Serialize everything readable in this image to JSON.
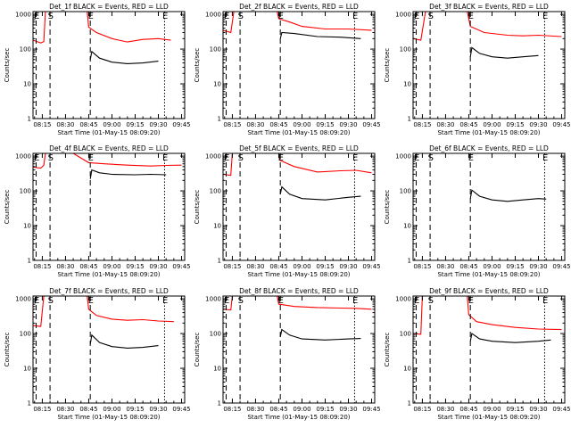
{
  "chart_data": [
    {
      "type": "line",
      "title": "Det_1f BLACK = Events, RED = LLD",
      "xlabel": "Start Time (01-May-15 08:09:20)",
      "ylabel": "Counts/sec",
      "x_ticks": [
        "08:15",
        "08:30",
        "08:45",
        "09:00",
        "09:15",
        "09:30",
        "09:45"
      ],
      "y_ticks": [
        "1",
        "10",
        "100",
        "1000"
      ],
      "ylim": [
        1,
        1200
      ],
      "scale": "log",
      "markers": [
        "E",
        "S",
        "E",
        "E"
      ],
      "series": [
        {
          "color": "#ff0000",
          "points": [
            [
              "08:09",
              180
            ],
            [
              "08:14",
              150
            ],
            [
              "08:16",
              165
            ],
            [
              "08:17",
              1200
            ],
            [
              "08:44",
              1200
            ],
            [
              "08:45",
              430
            ],
            [
              "08:50",
              300
            ],
            [
              "09:00",
              200
            ],
            [
              "09:10",
              160
            ],
            [
              "09:20",
              190
            ],
            [
              "09:30",
              200
            ],
            [
              "09:38",
              180
            ]
          ]
        },
        {
          "color": "#000000",
          "points": [
            [
              "08:46",
              50
            ],
            [
              "08:47",
              85
            ],
            [
              "08:52",
              55
            ],
            [
              "09:00",
              42
            ],
            [
              "09:10",
              38
            ],
            [
              "09:20",
              40
            ],
            [
              "09:30",
              45
            ]
          ]
        }
      ]
    },
    {
      "type": "line",
      "title": "Det_2f BLACK = Events, RED = LLD",
      "xlabel": "Start Time (01-May-15 08:09:20)",
      "ylabel": "Counts/sec",
      "x_ticks": [
        "08:15",
        "08:30",
        "08:45",
        "09:00",
        "09:15",
        "09:30",
        "09:45"
      ],
      "y_ticks": [
        "1",
        "10",
        "100",
        "1000"
      ],
      "ylim": [
        1,
        1200
      ],
      "scale": "log",
      "markers": [
        "E",
        "S",
        "E",
        "E"
      ],
      "series": [
        {
          "color": "#ff0000",
          "points": [
            [
              "08:09",
              350
            ],
            [
              "08:14",
              300
            ],
            [
              "08:16",
              1200
            ],
            [
              "08:44",
              1200
            ],
            [
              "08:45",
              750
            ],
            [
              "08:52",
              600
            ],
            [
              "09:00",
              450
            ],
            [
              "09:15",
              380
            ],
            [
              "09:30",
              380
            ],
            [
              "09:45",
              350
            ]
          ]
        },
        {
          "color": "#000000",
          "points": [
            [
              "08:46",
              200
            ],
            [
              "08:47",
              300
            ],
            [
              "08:55",
              280
            ],
            [
              "09:10",
              230
            ],
            [
              "09:25",
              220
            ],
            [
              "09:38",
              200
            ]
          ]
        }
      ]
    },
    {
      "type": "line",
      "title": "Det_3f BLACK = Events, RED = LLD",
      "xlabel": "Start Time (01-May-15 08:09:20)",
      "ylabel": "Counts/sec",
      "x_ticks": [
        "08:15",
        "08:30",
        "08:45",
        "09:00",
        "09:15",
        "09:30",
        "09:45"
      ],
      "y_ticks": [
        "1",
        "10",
        "100",
        "1000"
      ],
      "ylim": [
        1,
        1200
      ],
      "scale": "log",
      "markers": [
        "E",
        "S",
        "E",
        "E"
      ],
      "series": [
        {
          "color": "#ff0000",
          "points": [
            [
              "08:09",
              200
            ],
            [
              "08:14",
              180
            ],
            [
              "08:17",
              1200
            ],
            [
              "08:44",
              1200
            ],
            [
              "08:46",
              450
            ],
            [
              "08:55",
              300
            ],
            [
              "09:10",
              250
            ],
            [
              "09:20",
              240
            ],
            [
              "09:30",
              250
            ],
            [
              "09:45",
              230
            ]
          ]
        },
        {
          "color": "#000000",
          "points": [
            [
              "08:46",
              60
            ],
            [
              "08:47",
              110
            ],
            [
              "08:52",
              75
            ],
            [
              "09:00",
              60
            ],
            [
              "09:10",
              55
            ],
            [
              "09:20",
              60
            ],
            [
              "09:30",
              65
            ]
          ]
        }
      ]
    },
    {
      "type": "line",
      "title": "Det_4f BLACK = Events, RED = LLD",
      "xlabel": "Start Time (01-May-15 08:09:20)",
      "ylabel": "Counts/sec",
      "x_ticks": [
        "08:15",
        "08:30",
        "08:45",
        "09:00",
        "09:15",
        "09:30",
        "09:45"
      ],
      "y_ticks": [
        "1",
        "10",
        "100",
        "1000"
      ],
      "ylim": [
        1,
        1200
      ],
      "scale": "log",
      "markers": [
        "E",
        "S",
        "E",
        "E"
      ],
      "series": [
        {
          "color": "#ff0000",
          "points": [
            [
              "08:09",
              480
            ],
            [
              "08:14",
              450
            ],
            [
              "08:16",
              550
            ],
            [
              "08:17",
              1200
            ],
            [
              "08:35",
              1200
            ],
            [
              "08:38",
              1000
            ],
            [
              "08:45",
              650
            ],
            [
              "08:55",
              600
            ],
            [
              "09:10",
              550
            ],
            [
              "09:25",
              520
            ],
            [
              "09:35",
              540
            ],
            [
              "09:45",
              550
            ]
          ]
        },
        {
          "color": "#000000",
          "points": [
            [
              "08:46",
              220
            ],
            [
              "08:47",
              400
            ],
            [
              "08:52",
              330
            ],
            [
              "09:00",
              300
            ],
            [
              "09:15",
              290
            ],
            [
              "09:25",
              300
            ],
            [
              "09:35",
              290
            ]
          ]
        }
      ]
    },
    {
      "type": "line",
      "title": "Det_5f BLACK = Events, RED = LLD",
      "xlabel": "Start Time (01-May-15 08:09:20)",
      "ylabel": "Counts/sec",
      "x_ticks": [
        "08:15",
        "08:30",
        "08:45",
        "09:00",
        "09:15",
        "09:30",
        "09:45"
      ],
      "y_ticks": [
        "1",
        "10",
        "100",
        "1000"
      ],
      "ylim": [
        1,
        1200
      ],
      "scale": "log",
      "markers": [
        "E",
        "S",
        "E",
        "E"
      ],
      "series": [
        {
          "color": "#ff0000",
          "points": [
            [
              "08:09",
              300
            ],
            [
              "08:14",
              280
            ],
            [
              "08:15",
              1200
            ],
            [
              "08:45",
              1200
            ],
            [
              "08:46",
              750
            ],
            [
              "08:55",
              500
            ],
            [
              "09:10",
              350
            ],
            [
              "09:25",
              380
            ],
            [
              "09:35",
              390
            ],
            [
              "09:45",
              330
            ]
          ]
        },
        {
          "color": "#000000",
          "points": [
            [
              "08:46",
              80
            ],
            [
              "08:47",
              130
            ],
            [
              "08:52",
              80
            ],
            [
              "09:00",
              60
            ],
            [
              "09:15",
              55
            ],
            [
              "09:30",
              65
            ],
            [
              "09:38",
              70
            ]
          ]
        }
      ]
    },
    {
      "type": "line",
      "title": "Det_6f BLACK = Events, RED = LLD",
      "xlabel": "Start Time (01-May-15 08:09:20)",
      "ylabel": "Counts/sec",
      "x_ticks": [
        "08:15",
        "08:30",
        "08:45",
        "09:00",
        "09:15",
        "09:30",
        "09:45"
      ],
      "y_ticks": [
        "1",
        "10",
        "100",
        "1000"
      ],
      "ylim": [
        1,
        1200
      ],
      "scale": "log",
      "markers": [
        "E",
        "S",
        "E",
        "E"
      ],
      "series": [
        {
          "color": "#000000",
          "points": [
            [
              "08:46",
              60
            ],
            [
              "08:47",
              105
            ],
            [
              "08:52",
              70
            ],
            [
              "09:00",
              55
            ],
            [
              "09:10",
              50
            ],
            [
              "09:20",
              55
            ],
            [
              "09:30",
              60
            ],
            [
              "09:35",
              58
            ]
          ]
        }
      ]
    },
    {
      "type": "line",
      "title": "Det_7f BLACK = Events, RED = LLD",
      "xlabel": "Start Time (01-May-15 08:09:20)",
      "ylabel": "Counts/sec",
      "x_ticks": [
        "08:15",
        "08:30",
        "08:45",
        "09:00",
        "09:15",
        "09:30",
        "09:45"
      ],
      "y_ticks": [
        "1",
        "10",
        "100",
        "1000"
      ],
      "ylim": [
        1,
        1200
      ],
      "scale": "log",
      "markers": [
        "E",
        "S",
        "E",
        "E"
      ],
      "series": [
        {
          "color": "#ff0000",
          "points": [
            [
              "08:09",
              170
            ],
            [
              "08:14",
              160
            ],
            [
              "08:16",
              1200
            ],
            [
              "08:44",
              1200
            ],
            [
              "08:45",
              500
            ],
            [
              "08:50",
              330
            ],
            [
              "09:00",
              260
            ],
            [
              "09:10",
              240
            ],
            [
              "09:20",
              250
            ],
            [
              "09:30",
              230
            ],
            [
              "09:40",
              220
            ]
          ]
        },
        {
          "color": "#000000",
          "points": [
            [
              "08:46",
              50
            ],
            [
              "08:47",
              90
            ],
            [
              "08:52",
              55
            ],
            [
              "09:00",
              42
            ],
            [
              "09:10",
              38
            ],
            [
              "09:20",
              40
            ],
            [
              "09:30",
              45
            ]
          ]
        }
      ]
    },
    {
      "type": "line",
      "title": "Det_8f BLACK = Events, RED = LLD",
      "xlabel": "Start Time (01-May-15 08:09:20)",
      "ylabel": "Counts/sec",
      "x_ticks": [
        "08:15",
        "08:30",
        "08:45",
        "09:00",
        "09:15",
        "09:30",
        "09:45"
      ],
      "y_ticks": [
        "1",
        "10",
        "100",
        "1000"
      ],
      "ylim": [
        1,
        1200
      ],
      "scale": "log",
      "markers": [
        "E",
        "S",
        "E",
        "E"
      ],
      "series": [
        {
          "color": "#ff0000",
          "points": [
            [
              "08:09",
              500
            ],
            [
              "08:14",
              480
            ],
            [
              "08:15",
              1200
            ],
            [
              "08:44",
              1200
            ],
            [
              "08:45",
              700
            ],
            [
              "08:55",
              600
            ],
            [
              "09:10",
              560
            ],
            [
              "09:25",
              540
            ],
            [
              "09:35",
              530
            ],
            [
              "09:45",
              500
            ]
          ]
        },
        {
          "color": "#000000",
          "points": [
            [
              "08:46",
              80
            ],
            [
              "08:47",
              130
            ],
            [
              "08:52",
              90
            ],
            [
              "09:00",
              70
            ],
            [
              "09:15",
              65
            ],
            [
              "09:30",
              70
            ],
            [
              "09:38",
              72
            ]
          ]
        }
      ]
    },
    {
      "type": "line",
      "title": "Det_9f BLACK = Events, RED = LLD",
      "xlabel": "Start Time (01-May-15 08:09:20)",
      "ylabel": "Counts/sec",
      "x_ticks": [
        "08:15",
        "08:30",
        "08:45",
        "09:00",
        "09:15",
        "09:30",
        "09:45"
      ],
      "y_ticks": [
        "1",
        "10",
        "100",
        "1000"
      ],
      "ylim": [
        1,
        1200
      ],
      "scale": "log",
      "markers": [
        "E",
        "S",
        "E",
        "E"
      ],
      "series": [
        {
          "color": "#ff0000",
          "points": [
            [
              "08:09",
              100
            ],
            [
              "08:14",
              95
            ],
            [
              "08:15",
              1200
            ],
            [
              "08:44",
              1200
            ],
            [
              "08:45",
              350
            ],
            [
              "08:50",
              220
            ],
            [
              "09:00",
              180
            ],
            [
              "09:15",
              150
            ],
            [
              "09:30",
              135
            ],
            [
              "09:45",
              130
            ]
          ]
        },
        {
          "color": "#000000",
          "points": [
            [
              "08:46",
              60
            ],
            [
              "08:47",
              100
            ],
            [
              "08:52",
              70
            ],
            [
              "09:00",
              60
            ],
            [
              "09:15",
              55
            ],
            [
              "09:30",
              60
            ],
            [
              "09:38",
              65
            ]
          ]
        }
      ]
    }
  ]
}
